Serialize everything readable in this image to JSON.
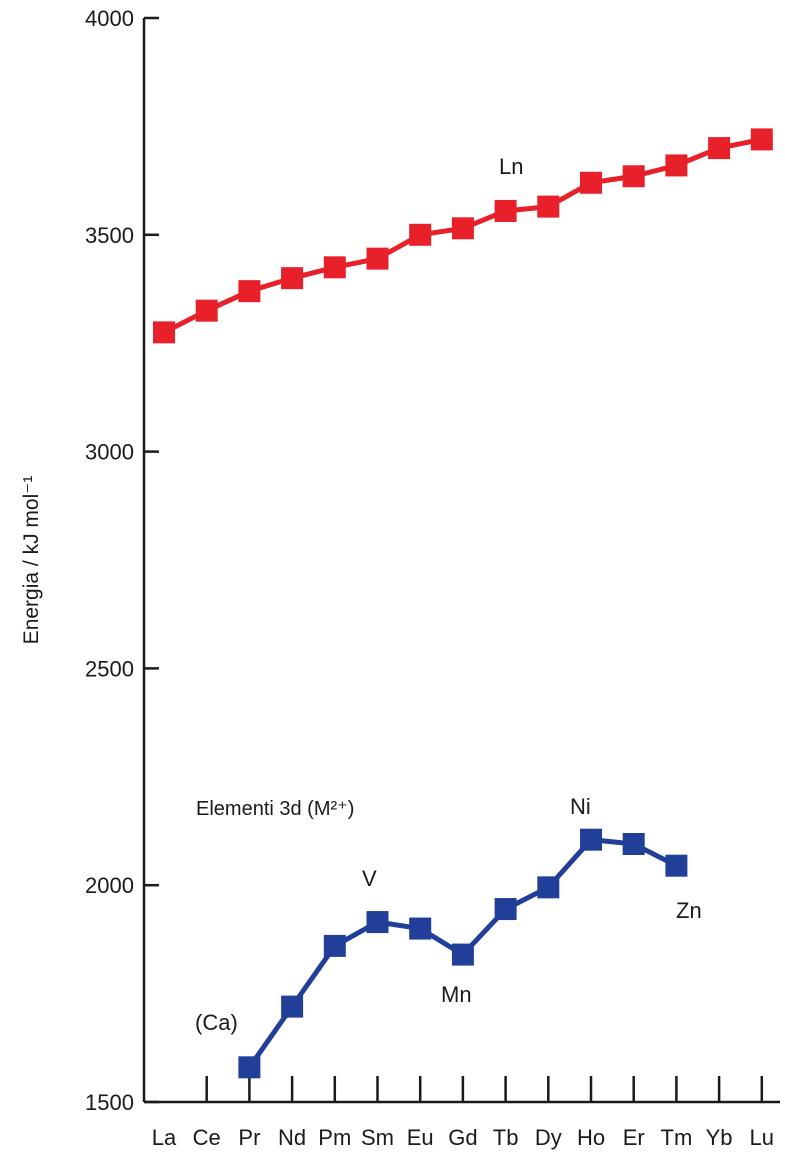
{
  "chart_data": {
    "type": "line",
    "title": "",
    "ylabel": "Energia / kJ mol⁻¹",
    "xlabel": "",
    "ylim": [
      1500,
      4000
    ],
    "yticks": [
      1500,
      2000,
      2500,
      3000,
      3500,
      4000
    ],
    "categories": [
      "La",
      "Ce",
      "Pr",
      "Nd",
      "Pm",
      "Sm",
      "Eu",
      "Gd",
      "Tb",
      "Dy",
      "Ho",
      "Er",
      "Tm",
      "Yb",
      "Lu"
    ],
    "grid": false,
    "series": [
      {
        "name": "Ln",
        "color": "#e8202a",
        "values": [
          3275,
          3325,
          3370,
          3400,
          3425,
          3445,
          3500,
          3515,
          3555,
          3565,
          3620,
          3635,
          3660,
          3700,
          3720
        ]
      },
      {
        "name": "Elementi 3d (M²⁺)",
        "color": "#213f99",
        "values": [
          null,
          null,
          1580,
          1720,
          1860,
          1915,
          1900,
          1840,
          1945,
          1995,
          2105,
          2095,
          2045,
          null,
          null
        ]
      }
    ],
    "annotations": {
      "ln": "Ln",
      "d_series": "Elementi 3d (M²⁺)",
      "ca": "(Ca)",
      "v": "V",
      "mn": "Mn",
      "ni": "Ni",
      "zn": "Zn"
    }
  }
}
